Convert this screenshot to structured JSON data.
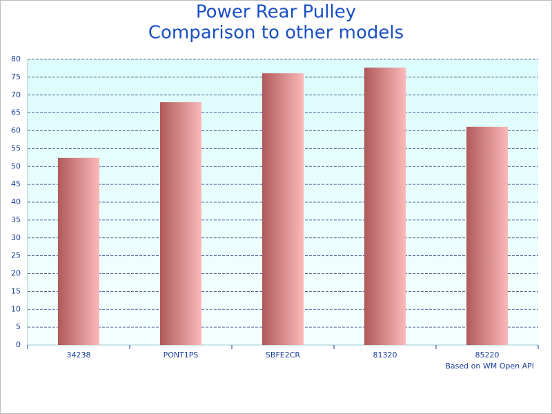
{
  "chart_data": {
    "type": "bar",
    "title": "Power Rear Pulley",
    "subtitle": "Comparison to other models",
    "categories": [
      "34238",
      "PONT1PS",
      "SBFE2CR",
      "81320",
      "85220"
    ],
    "values": [
      52.4,
      68.0,
      76.1,
      77.7,
      61.1
    ],
    "color": "#b05a5a",
    "ylim": [
      0,
      80
    ],
    "yticks": [
      0,
      5,
      10,
      15,
      20,
      25,
      30,
      35,
      40,
      45,
      50,
      55,
      60,
      65,
      70,
      75,
      80
    ],
    "grid": true,
    "annotation": "Based on WM Open API"
  }
}
